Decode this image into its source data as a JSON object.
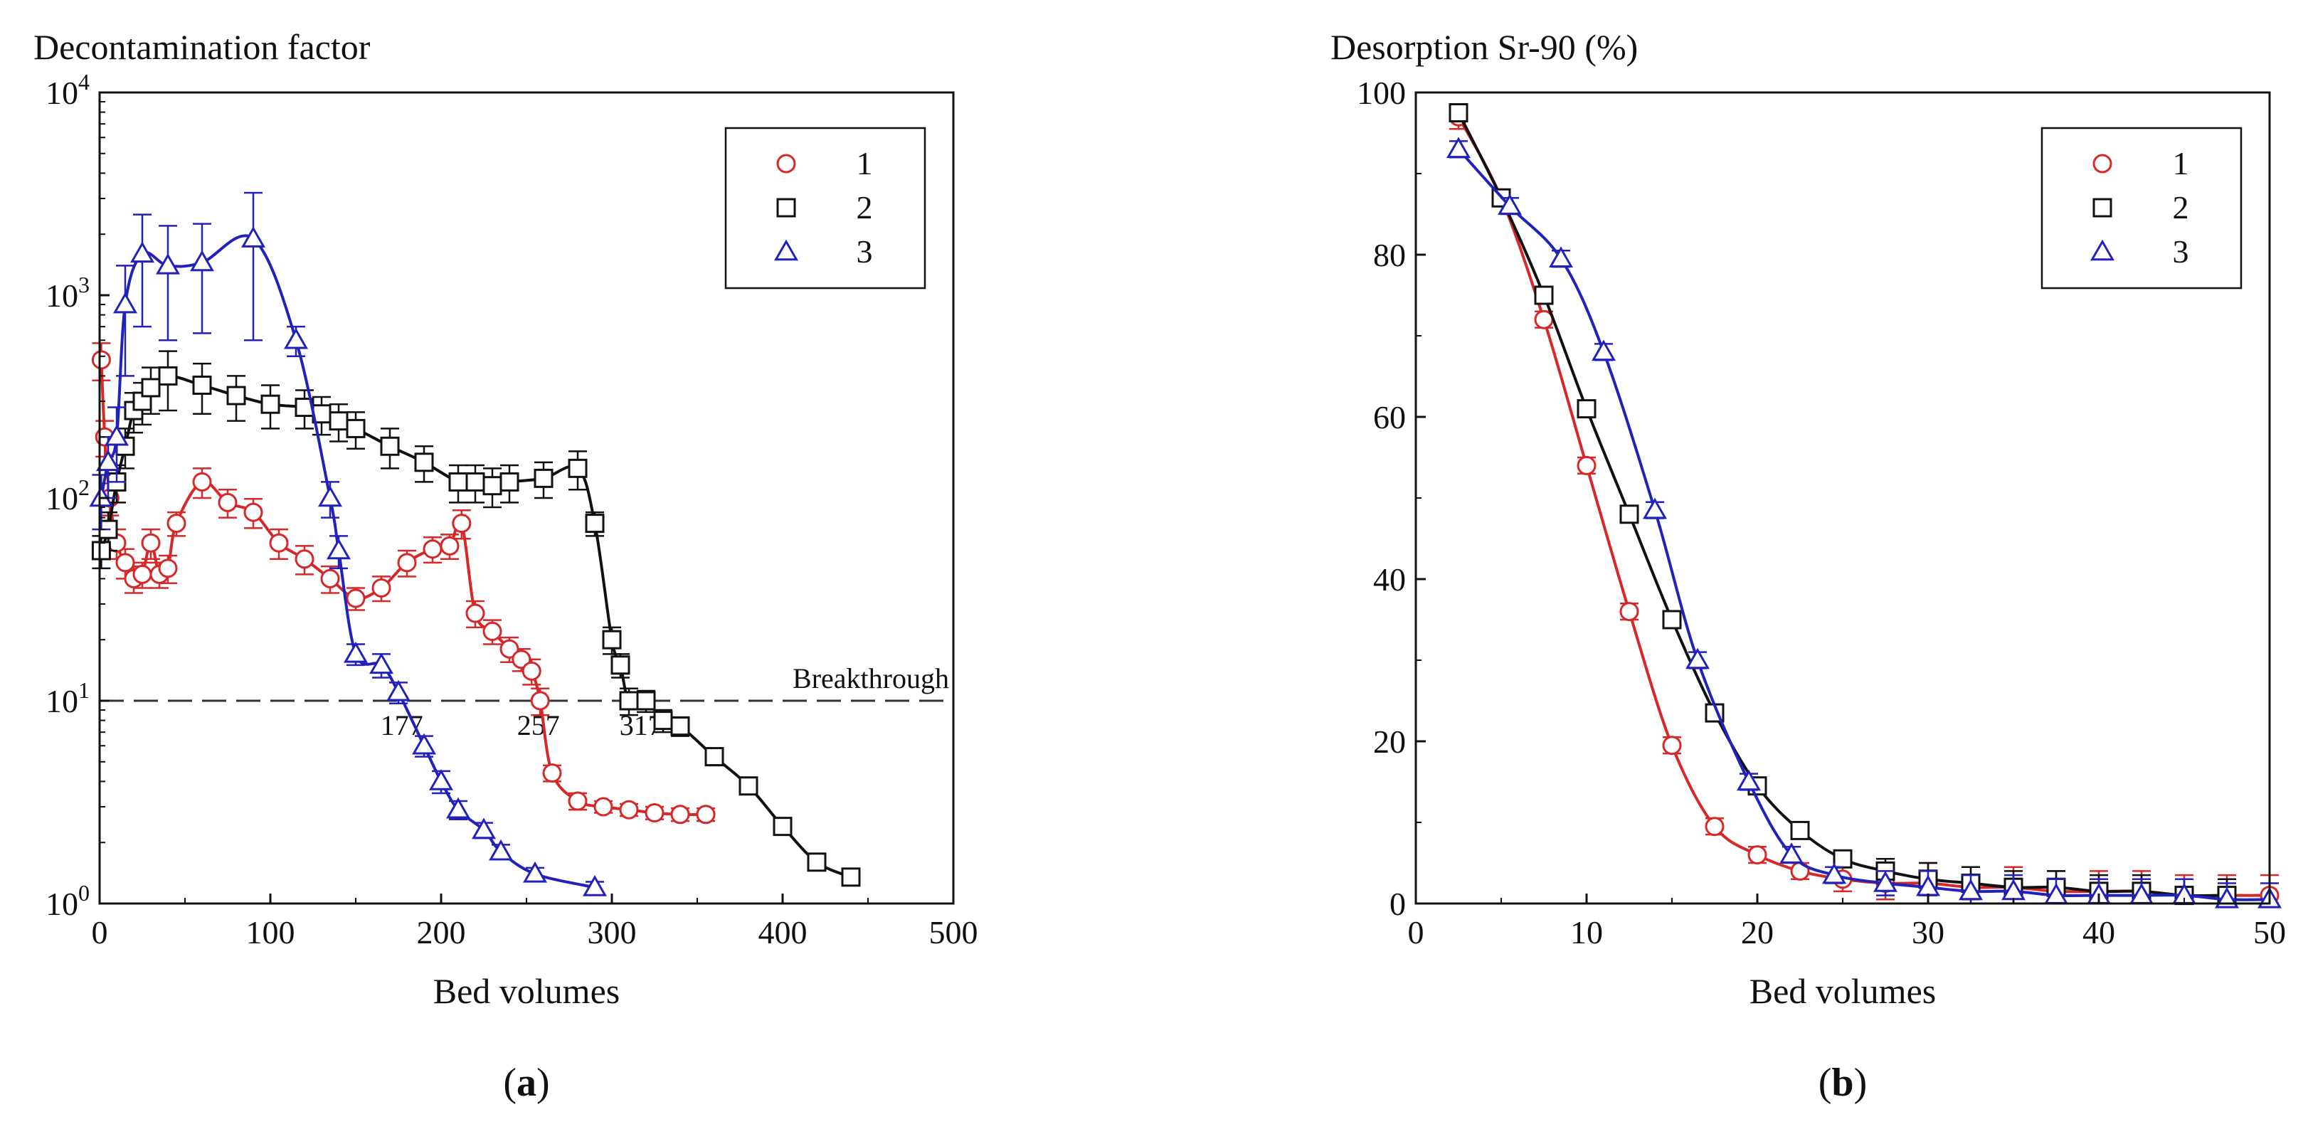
{
  "chart_data": [
    {
      "id": "a",
      "type": "line",
      "panel_label": "a",
      "title": "Decontamination factor",
      "xlabel": "Bed volumes",
      "ylabel": "Decontamination factor",
      "xscale": "linear",
      "yscale": "log",
      "xlim": [
        0,
        500
      ],
      "ylim": [
        1,
        10000
      ],
      "xticks": [
        "0",
        "100",
        "200",
        "300",
        "400",
        "500"
      ],
      "yticks": [
        {
          "base": "10",
          "exp": "0"
        },
        {
          "base": "10",
          "exp": "1"
        },
        {
          "base": "10",
          "exp": "2"
        },
        {
          "base": "10",
          "exp": "3"
        },
        {
          "base": "10",
          "exp": "4"
        }
      ],
      "legend_position": "top-right",
      "threshold": {
        "y": 10,
        "label": "Breakthrough",
        "style": "dashed"
      },
      "annotations": [
        {
          "text": "177",
          "series": "3",
          "x": 177
        },
        {
          "text": "257",
          "series": "1",
          "x": 257
        },
        {
          "text": "317",
          "series": "2",
          "x": 317
        }
      ],
      "series": [
        {
          "name": "1",
          "color": "#d62828",
          "marker": "circle",
          "x": [
            1,
            3,
            6,
            10,
            15,
            20,
            25,
            30,
            35,
            40,
            45,
            60,
            75,
            90,
            105,
            120,
            135,
            150,
            165,
            180,
            195,
            205,
            212,
            220,
            230,
            240,
            247,
            253,
            258,
            265,
            280,
            295,
            310,
            325,
            340,
            355
          ],
          "y": [
            480,
            200,
            100,
            60,
            48,
            40,
            42,
            60,
            42,
            45,
            75,
            120,
            95,
            85,
            60,
            50,
            40,
            32,
            36,
            48,
            56,
            58,
            75,
            27,
            22,
            18,
            16,
            14,
            10,
            4.4,
            3.2,
            3.0,
            2.9,
            2.8,
            2.75,
            2.75
          ],
          "err": [
            100,
            40,
            18,
            10,
            8,
            6,
            6,
            10,
            6,
            7,
            10,
            20,
            15,
            14,
            10,
            8,
            6,
            4,
            5,
            7,
            8,
            8,
            12,
            4,
            3,
            2.5,
            2,
            2,
            1.5,
            0.4,
            0.3,
            0.2,
            0.2,
            0.2,
            0.2,
            0.2
          ]
        },
        {
          "name": "2",
          "color": "#111111",
          "marker": "square",
          "x": [
            1,
            5,
            10,
            15,
            20,
            25,
            30,
            40,
            60,
            80,
            100,
            120,
            130,
            140,
            150,
            170,
            190,
            210,
            220,
            230,
            240,
            260,
            280,
            290,
            300,
            305,
            310,
            320,
            330,
            340,
            360,
            380,
            400,
            420,
            440
          ],
          "y": [
            55,
            70,
            120,
            180,
            270,
            300,
            350,
            400,
            360,
            320,
            290,
            280,
            260,
            240,
            220,
            180,
            150,
            120,
            120,
            115,
            120,
            125,
            140,
            75,
            20,
            15,
            10,
            10,
            8,
            7.5,
            5.3,
            3.8,
            2.4,
            1.6,
            1.35
          ],
          "err": [
            10,
            15,
            25,
            40,
            60,
            70,
            90,
            130,
            100,
            80,
            70,
            60,
            55,
            50,
            45,
            40,
            30,
            25,
            25,
            25,
            25,
            25,
            30,
            10,
            3,
            2,
            1.5,
            1.2,
            1,
            0.8,
            0.5,
            0.3,
            0.2,
            0.1,
            0.08
          ]
        },
        {
          "name": "3",
          "color": "#2222bb",
          "marker": "triangle",
          "x": [
            1,
            5,
            10,
            15,
            25,
            40,
            60,
            90,
            115,
            135,
            140,
            150,
            165,
            175,
            190,
            200,
            210,
            225,
            235,
            255,
            290
          ],
          "y": [
            100,
            150,
            200,
            900,
            1600,
            1400,
            1450,
            1900,
            600,
            100,
            55,
            17,
            15,
            11,
            6,
            4,
            2.9,
            2.3,
            1.8,
            1.4,
            1.2
          ],
          "err": [
            30,
            50,
            80,
            500,
            900,
            800,
            800,
            1300,
            100,
            20,
            10,
            2,
            2,
            1.3,
            0.7,
            0.5,
            0.3,
            0.2,
            0.15,
            0.1,
            0.08
          ]
        }
      ]
    },
    {
      "id": "b",
      "type": "line",
      "panel_label": "b",
      "title": "Desorption Sr-90 (%)",
      "xlabel": "Bed volumes",
      "ylabel": "Desorption Sr-90 (%)",
      "xscale": "linear",
      "yscale": "linear",
      "xlim": [
        0,
        50
      ],
      "ylim": [
        0,
        100
      ],
      "xticks": [
        "0",
        "10",
        "20",
        "30",
        "40",
        "50"
      ],
      "yticks": [
        "0",
        "20",
        "40",
        "60",
        "80",
        "100"
      ],
      "legend_position": "top-right",
      "series": [
        {
          "name": "1",
          "color": "#d62828",
          "marker": "circle",
          "x": [
            2.5,
            5,
            7.5,
            10,
            12.5,
            15,
            17.5,
            20,
            22.5,
            25,
            27.5,
            30,
            32.5,
            35,
            37.5,
            40,
            42.5,
            45,
            47.5,
            50
          ],
          "y": [
            97,
            87,
            72,
            54,
            36,
            19.5,
            9.5,
            6,
            4,
            3,
            2.5,
            2.5,
            2,
            2,
            1.5,
            1.5,
            1.5,
            1,
            1,
            1
          ],
          "err": [
            1.5,
            1,
            1,
            1,
            1,
            1,
            1,
            1,
            1,
            1.5,
            2,
            2.5,
            2.5,
            2.5,
            2.5,
            2.5,
            2.5,
            2.5,
            2.5,
            2.5
          ]
        },
        {
          "name": "2",
          "color": "#111111",
          "marker": "square",
          "x": [
            2.5,
            5,
            7.5,
            10,
            12.5,
            15,
            17.5,
            20,
            22.5,
            25,
            27.5,
            30,
            32.5,
            35,
            37.5,
            40,
            42.5,
            45,
            47.5
          ],
          "y": [
            97.5,
            87,
            75,
            61,
            48,
            35,
            23.5,
            14.5,
            9,
            5.5,
            4,
            3,
            2.5,
            2,
            2,
            1.5,
            1.5,
            1,
            1
          ],
          "err": [
            1,
            1,
            1,
            1,
            1,
            1,
            1,
            1,
            1,
            1,
            1.5,
            2,
            2,
            2,
            2,
            2,
            2,
            2,
            2
          ]
        },
        {
          "name": "3",
          "color": "#2222bb",
          "marker": "triangle",
          "x": [
            2.5,
            5.5,
            8.5,
            11,
            14,
            16.5,
            19.5,
            22,
            24.5,
            27.5,
            30,
            32.5,
            35,
            37.5,
            40,
            42.5,
            45,
            47.5,
            50
          ],
          "y": [
            93,
            86,
            79.5,
            68,
            48.5,
            30,
            15,
            6,
            3.5,
            2.5,
            2,
            1.5,
            1.5,
            1,
            1,
            1,
            1,
            0.5,
            0.5
          ],
          "err": [
            1,
            1,
            1,
            1,
            1,
            1,
            1,
            1,
            1,
            1.5,
            2,
            2,
            2,
            2,
            2,
            2,
            2,
            2,
            2
          ]
        }
      ]
    }
  ]
}
